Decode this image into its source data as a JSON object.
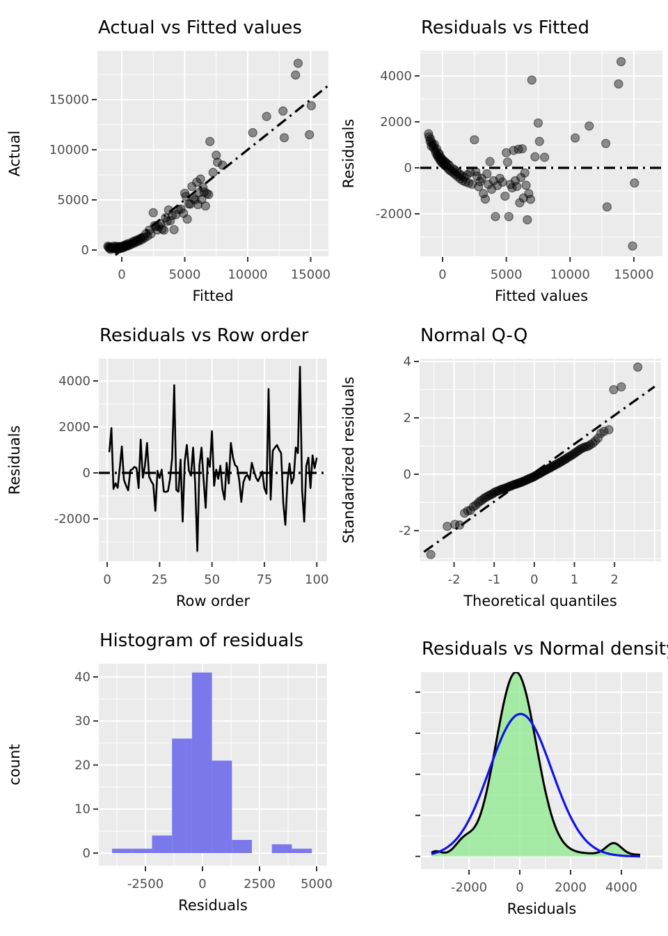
{
  "figure": {
    "background": "#FFFFFF",
    "panel_bg": "#EBEBEB",
    "grid_color": "#FFFFFF",
    "tick_mark_color": "#333333",
    "tick_label_color": "#4D4D4D",
    "point_color": "#000000",
    "line_color": "#000000",
    "refline_color": "#000000",
    "hist_fill": "#7B78EC",
    "density_fill": "#8CE98C",
    "density_fill_opacity": 0.75,
    "density_line_color": "#000000",
    "normal_curve_color": "#1212EE"
  },
  "model_points": {
    "fitted": [
      -1100,
      -1060,
      -980,
      -940,
      -880,
      -850,
      -760,
      -700,
      -640,
      -580,
      -520,
      -470,
      -420,
      -380,
      -330,
      -290,
      -240,
      -200,
      -160,
      -120,
      -80,
      -40,
      0,
      40,
      90,
      140,
      190,
      240,
      290,
      350,
      410,
      470,
      530,
      600,
      740,
      820,
      900,
      960,
      1040,
      1130,
      1220,
      1310,
      1400,
      1500,
      1600,
      1700,
      1810,
      1930,
      2050,
      2180,
      2320,
      2500,
      2600,
      2700,
      2820,
      2950,
      3080,
      3200,
      3350,
      3480,
      3600,
      3720,
      3850,
      4000,
      4150,
      4300,
      4500,
      4700,
      4900,
      5000,
      5100,
      5200,
      5320,
      5450,
      5570,
      5700,
      5820,
      5950,
      6050,
      6150,
      6250,
      6350,
      6450,
      6550,
      6650,
      6760,
      6900,
      7000,
      7250,
      7500,
      7600,
      8000,
      10400,
      11500,
      12800,
      12900,
      13800,
      14000,
      14900,
      15050
    ],
    "residuals": [
      1480,
      1350,
      1150,
      1250,
      950,
      1100,
      980,
      870,
      1020,
      760,
      640,
      830,
      560,
      500,
      660,
      430,
      580,
      340,
      460,
      280,
      400,
      230,
      350,
      180,
      300,
      120,
      260,
      80,
      210,
      40,
      160,
      -60,
      110,
      -120,
      -170,
      -40,
      -240,
      -90,
      -310,
      -170,
      -390,
      -260,
      -480,
      -330,
      -560,
      -420,
      -610,
      -300,
      -660,
      -200,
      -710,
      1220,
      -160,
      -360,
      -820,
      -600,
      -460,
      -1120,
      -1360,
      -260,
      -720,
      270,
      -930,
      -560,
      -2120,
      -770,
      -460,
      -620,
      -1230,
      660,
      250,
      -2120,
      -720,
      -870,
      760,
      -560,
      -810,
      810,
      -1520,
      -420,
      830,
      -1310,
      -220,
      -760,
      -2260,
      -1120,
      -1370,
      3820,
      480,
      1950,
      1150,
      460,
      1300,
      1820,
      1060,
      -1700,
      3650,
      4620,
      -3400,
      -660
    ]
  },
  "chart_data": [
    {
      "id": "actual_vs_fitted",
      "type": "scatter",
      "points_source": "fitted_vs_actual",
      "title": "Actual vs Fitted values",
      "xlabel": "Fitted",
      "ylabel": "Actual",
      "xlim": [
        -1934,
        16409
      ],
      "ylim": [
        -625,
        19861
      ],
      "xticks": {
        "values": [
          0,
          5000,
          10000,
          15000
        ],
        "labels": [
          "0",
          "5000",
          "10000",
          "15000"
        ]
      },
      "yticks": {
        "values": [
          0,
          5000,
          10000,
          15000
        ],
        "labels": [
          "0",
          "5000",
          "10000",
          "15000"
        ]
      },
      "xminor": [
        2500,
        7500,
        12500
      ],
      "yminor": [
        2500,
        7500,
        12500,
        17500
      ],
      "panel": {
        "l": 140,
        "t": 73,
        "r": 472,
        "b": 368
      },
      "refline": {
        "kind": "abline",
        "slope": 1,
        "intercept": 0,
        "from": -500,
        "to": 16400
      }
    },
    {
      "id": "residuals_vs_fitted",
      "type": "scatter",
      "points_source": "fitted_vs_residual",
      "title": "Residuals vs Fitted",
      "xlabel": "Fitted values",
      "ylabel": "Residuals",
      "xlim": [
        -1746,
        17242
      ],
      "ylim": [
        -3848,
        5090
      ],
      "xticks": {
        "values": [
          0,
          5000,
          10000,
          15000
        ],
        "labels": [
          "0",
          "5000",
          "10000",
          "15000"
        ]
      },
      "yticks": {
        "values": [
          -2000,
          0,
          2000,
          4000
        ],
        "labels": [
          "-2000",
          "0",
          "2000",
          "4000"
        ]
      },
      "xminor": [
        2500,
        7500,
        12500
      ],
      "yminor": [
        -3000,
        -1000,
        1000,
        3000,
        5000
      ],
      "panel": {
        "l": 124,
        "t": 73,
        "r": 472,
        "b": 368
      },
      "refline": {
        "kind": "hline",
        "y": 0
      }
    },
    {
      "id": "residuals_vs_row_order",
      "type": "line",
      "title": "Residuals vs Row order",
      "xlabel": "Row order",
      "ylabel": "Residuals",
      "xlim": [
        -4,
        104.9
      ],
      "ylim": [
        -3848,
        4970
      ],
      "xticks": {
        "values": [
          0,
          25,
          50,
          75,
          100
        ],
        "labels": [
          "0",
          "25",
          "50",
          "75",
          "100"
        ]
      },
      "yticks": {
        "values": [
          -2000,
          0,
          2000,
          4000
        ],
        "labels": [
          "-2000",
          "0",
          "2000",
          "4000"
        ]
      },
      "xminor": [
        12.5,
        37.5,
        62.5,
        87.5
      ],
      "yminor": [
        -3000,
        -1000,
        1000,
        3000
      ],
      "panel": {
        "l": 142,
        "t": 67,
        "r": 470,
        "b": 358
      },
      "refline": {
        "kind": "hline",
        "y": 0
      },
      "values": [
        900,
        1950,
        -700,
        -450,
        -650,
        200,
        1150,
        -300,
        -550,
        -760,
        100,
        160,
        260,
        210,
        -660,
        1450,
        -210,
        310,
        1300,
        -160,
        -360,
        -510,
        -1650,
        90,
        -220,
        140,
        -810,
        -830,
        -790,
        -260,
        660,
        3820,
        -740,
        -820,
        580,
        -2120,
        490,
        1220,
        90,
        -120,
        1100,
        -460,
        -3400,
        320,
        1100,
        -310,
        -1520,
        640,
        260,
        1820,
        -560,
        140,
        -260,
        310,
        -710,
        -1160,
        440,
        -460,
        1300,
        660,
        340,
        260,
        -310,
        -1260,
        -410,
        -160,
        -90,
        -310,
        440,
        90,
        -210,
        -360,
        -160,
        60,
        -660,
        -910,
        3650,
        -1160,
        960,
        1100,
        1210,
        1010,
        860,
        -1310,
        -2260,
        -360,
        410,
        -460,
        -210,
        1110,
        860,
        4620,
        -760,
        -2120,
        310,
        660,
        -660,
        760,
        210,
        660
      ]
    },
    {
      "id": "normal_qq",
      "type": "scatter",
      "points_source": "explicit",
      "title": "Normal Q-Q",
      "xlabel": "Theoretical quantiles",
      "ylabel": "Standardized residuals",
      "xlim": [
        -2.86,
        3.16
      ],
      "ylim": [
        -3.09,
        4.1
      ],
      "xticks": {
        "values": [
          -2,
          -1,
          0,
          1,
          2
        ],
        "labels": [
          "-2",
          "-1",
          "0",
          "1",
          "2"
        ]
      },
      "yticks": {
        "values": [
          -2,
          0,
          2,
          4
        ],
        "labels": [
          "-2",
          "0",
          "2",
          "4"
        ]
      },
      "xgrid": [
        -2,
        -1,
        0,
        1,
        2,
        3
      ],
      "xminor": [
        -2.5,
        -1.5,
        -0.5,
        0.5,
        1.5,
        2.5
      ],
      "yminor": [
        -3,
        -1,
        1,
        3
      ],
      "panel": {
        "l": 123,
        "t": 67,
        "r": 470,
        "b": 358
      },
      "refline": {
        "kind": "abline",
        "slope": 1.02,
        "intercept": 0.05,
        "from": -2.75,
        "to": 3.0
      },
      "points": [
        [
          -2.58,
          -2.85
        ],
        [
          -2.17,
          -1.85
        ],
        [
          -1.98,
          -1.78
        ],
        [
          -1.86,
          -1.8
        ],
        [
          -1.74,
          -1.38
        ],
        [
          -1.66,
          -1.3
        ],
        [
          -1.59,
          -1.28
        ],
        [
          -1.52,
          -1.15
        ],
        [
          -1.46,
          -1.1
        ],
        [
          -1.4,
          -1.02
        ],
        [
          -1.35,
          -0.95
        ],
        [
          -1.3,
          -0.92
        ],
        [
          -1.25,
          -0.85
        ],
        [
          -1.21,
          -0.82
        ],
        [
          -1.16,
          -0.78
        ],
        [
          -1.12,
          -0.75
        ],
        [
          -1.08,
          -0.72
        ],
        [
          -1.04,
          -0.7
        ],
        [
          -1.0,
          -0.65
        ],
        [
          -0.96,
          -0.62
        ],
        [
          -0.92,
          -0.6
        ],
        [
          -0.88,
          -0.58
        ],
        [
          -0.84,
          -0.55
        ],
        [
          -0.8,
          -0.53
        ],
        [
          -0.77,
          -0.52
        ],
        [
          -0.73,
          -0.5
        ],
        [
          -0.7,
          -0.48
        ],
        [
          -0.66,
          -0.46
        ],
        [
          -0.63,
          -0.44
        ],
        [
          -0.59,
          -0.42
        ],
        [
          -0.56,
          -0.4
        ],
        [
          -0.52,
          -0.38
        ],
        [
          -0.49,
          -0.36
        ],
        [
          -0.45,
          -0.35
        ],
        [
          -0.42,
          -0.33
        ],
        [
          -0.39,
          -0.31
        ],
        [
          -0.35,
          -0.3
        ],
        [
          -0.32,
          -0.28
        ],
        [
          -0.29,
          -0.26
        ],
        [
          -0.25,
          -0.24
        ],
        [
          -0.22,
          -0.22
        ],
        [
          -0.19,
          -0.2
        ],
        [
          -0.16,
          -0.18
        ],
        [
          -0.13,
          -0.16
        ],
        [
          -0.09,
          -0.14
        ],
        [
          -0.06,
          -0.12
        ],
        [
          -0.03,
          -0.1
        ],
        [
          0.0,
          -0.08
        ],
        [
          0.03,
          -0.05
        ],
        [
          0.06,
          -0.03
        ],
        [
          0.09,
          0.0
        ],
        [
          0.13,
          0.02
        ],
        [
          0.16,
          0.05
        ],
        [
          0.19,
          0.08
        ],
        [
          0.22,
          0.1
        ],
        [
          0.25,
          0.12
        ],
        [
          0.29,
          0.15
        ],
        [
          0.32,
          0.17
        ],
        [
          0.35,
          0.2
        ],
        [
          0.39,
          0.22
        ],
        [
          0.42,
          0.25
        ],
        [
          0.45,
          0.28
        ],
        [
          0.49,
          0.3
        ],
        [
          0.52,
          0.33
        ],
        [
          0.56,
          0.36
        ],
        [
          0.59,
          0.38
        ],
        [
          0.63,
          0.41
        ],
        [
          0.66,
          0.44
        ],
        [
          0.7,
          0.47
        ],
        [
          0.73,
          0.5
        ],
        [
          0.77,
          0.53
        ],
        [
          0.8,
          0.56
        ],
        [
          0.84,
          0.6
        ],
        [
          0.88,
          0.63
        ],
        [
          0.92,
          0.66
        ],
        [
          0.96,
          0.7
        ],
        [
          1.0,
          0.74
        ],
        [
          1.04,
          0.78
        ],
        [
          1.08,
          0.82
        ],
        [
          1.12,
          0.86
        ],
        [
          1.16,
          0.9
        ],
        [
          1.21,
          0.93
        ],
        [
          1.25,
          0.96
        ],
        [
          1.3,
          0.98
        ],
        [
          1.35,
          1.0
        ],
        [
          1.4,
          1.05
        ],
        [
          1.46,
          1.1
        ],
        [
          1.52,
          1.18
        ],
        [
          1.59,
          1.28
        ],
        [
          1.66,
          1.45
        ],
        [
          1.74,
          1.52
        ],
        [
          1.86,
          1.58
        ],
        [
          1.98,
          3.0
        ],
        [
          2.17,
          3.1
        ],
        [
          2.58,
          3.8
        ]
      ]
    },
    {
      "id": "histogram_of_residuals",
      "type": "hist",
      "title": "Histogram of residuals",
      "xlabel": "Residuals",
      "ylabel": "count",
      "xlim": [
        -4543,
        5457
      ],
      "ylim": [
        -2.85,
        43
      ],
      "xticks": {
        "values": [
          -2500,
          0,
          2500,
          5000
        ],
        "labels": [
          "-2500",
          "0",
          "2500",
          "5000"
        ]
      },
      "yticks": {
        "values": [
          0,
          10,
          20,
          30,
          40
        ],
        "labels": [
          "0",
          "10",
          "20",
          "30",
          "40"
        ]
      },
      "xminor": [
        -3750,
        -1250,
        1250,
        3750
      ],
      "yminor": [
        5,
        15,
        25,
        35
      ],
      "panel": {
        "l": 142,
        "t": 57,
        "r": 470,
        "b": 347
      },
      "bin_edges": [
        -3960,
        -3085,
        -2210,
        -1335,
        -460,
        415,
        1290,
        2165,
        3040,
        3915,
        4790
      ],
      "counts": [
        1,
        1,
        4,
        26,
        41,
        21,
        3,
        0,
        2,
        1
      ]
    },
    {
      "id": "residuals_vs_normal_density",
      "type": "density",
      "title": "Residuals vs Normal density",
      "xlabel": "Residuals",
      "ylabel": "",
      "xlim": [
        -3890,
        5616
      ],
      "ylim": [
        -0.31,
        4.49
      ],
      "xticks": {
        "values": [
          -2000,
          0,
          2000,
          4000
        ],
        "labels": [
          "-2000",
          "0",
          "2000",
          "4000"
        ]
      },
      "yticks": {
        "values": [
          0,
          1,
          2,
          3,
          4
        ],
        "labels": []
      },
      "xminor": [
        -3000,
        -1000,
        1000,
        3000,
        5000
      ],
      "yminor": [
        0.5,
        1.5,
        2.5,
        3.5
      ],
      "panel": {
        "l": 125,
        "t": 69,
        "r": 472,
        "b": 352
      },
      "sample_range": [
        -3480,
        4740
      ],
      "curves": [
        {
          "name": "residual-density",
          "filled": true,
          "components": [
            [
              4.42,
              -150,
              790
            ],
            [
              0.3,
              -2200,
              340
            ],
            [
              0.27,
              3700,
              300
            ],
            [
              0.1,
              -3300,
              220
            ],
            [
              0.08,
              1200,
              2900
            ]
          ]
        },
        {
          "name": "normal-density",
          "filled": false,
          "components": [
            [
              3.47,
              30,
              1230
            ]
          ]
        }
      ]
    }
  ]
}
